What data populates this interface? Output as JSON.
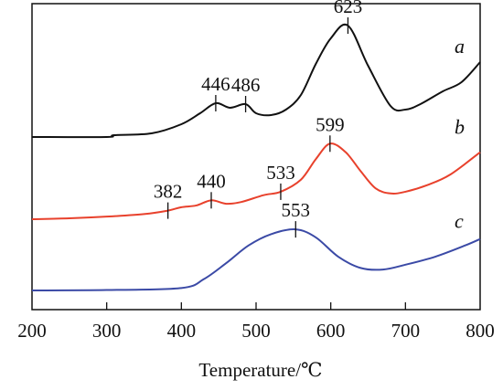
{
  "chart_data": {
    "type": "line",
    "xlabel": "Temperature/℃",
    "xlim": [
      200,
      800
    ],
    "x_ticks": [
      200,
      300,
      400,
      500,
      600,
      700,
      800
    ],
    "x_tick_labels": [
      "200",
      "300",
      "400",
      "500",
      "600",
      "700",
      "800"
    ],
    "y_axis_visible": false,
    "grid": false,
    "series": [
      {
        "name": "a",
        "color": "#111111",
        "x": [
          200,
          300,
          310,
          360,
          400,
          425,
          446,
          465,
          486,
          500,
          520,
          540,
          560,
          580,
          600,
          623,
          650,
          680,
          700,
          720,
          750,
          775,
          800
        ],
        "y": [
          0.0,
          0.0,
          0.02,
          0.04,
          0.14,
          0.26,
          0.37,
          0.32,
          0.36,
          0.26,
          0.24,
          0.3,
          0.46,
          0.8,
          1.08,
          1.22,
          0.78,
          0.34,
          0.3,
          0.36,
          0.5,
          0.6,
          0.82
        ],
        "peaks": [
          446,
          486,
          623
        ],
        "peak_labels": [
          "446",
          "486",
          "623"
        ]
      },
      {
        "name": "b",
        "color": "#e8412c",
        "x": [
          200,
          250,
          300,
          350,
          382,
          400,
          420,
          440,
          460,
          480,
          510,
          533,
          560,
          580,
          599,
          620,
          640,
          660,
          680,
          700,
          730,
          760,
          800
        ],
        "y": [
          0.0,
          0.01,
          0.03,
          0.06,
          0.1,
          0.14,
          0.16,
          0.22,
          0.18,
          0.2,
          0.28,
          0.32,
          0.46,
          0.7,
          0.88,
          0.78,
          0.56,
          0.36,
          0.3,
          0.32,
          0.4,
          0.52,
          0.78
        ],
        "peaks": [
          382,
          440,
          533,
          599
        ],
        "peak_labels": [
          "382",
          "440",
          "533",
          "599"
        ]
      },
      {
        "name": "c",
        "color": "#3b4aa6",
        "x": [
          200,
          300,
          400,
          430,
          460,
          490,
          520,
          553,
          580,
          610,
          640,
          670,
          700,
          740,
          780,
          800
        ],
        "y": [
          0.0,
          0.005,
          0.03,
          0.14,
          0.34,
          0.56,
          0.7,
          0.76,
          0.66,
          0.42,
          0.28,
          0.26,
          0.32,
          0.42,
          0.56,
          0.64
        ],
        "peaks": [
          553
        ],
        "peak_labels": [
          "553"
        ]
      }
    ],
    "series_labels": [
      "a",
      "b",
      "c"
    ]
  }
}
